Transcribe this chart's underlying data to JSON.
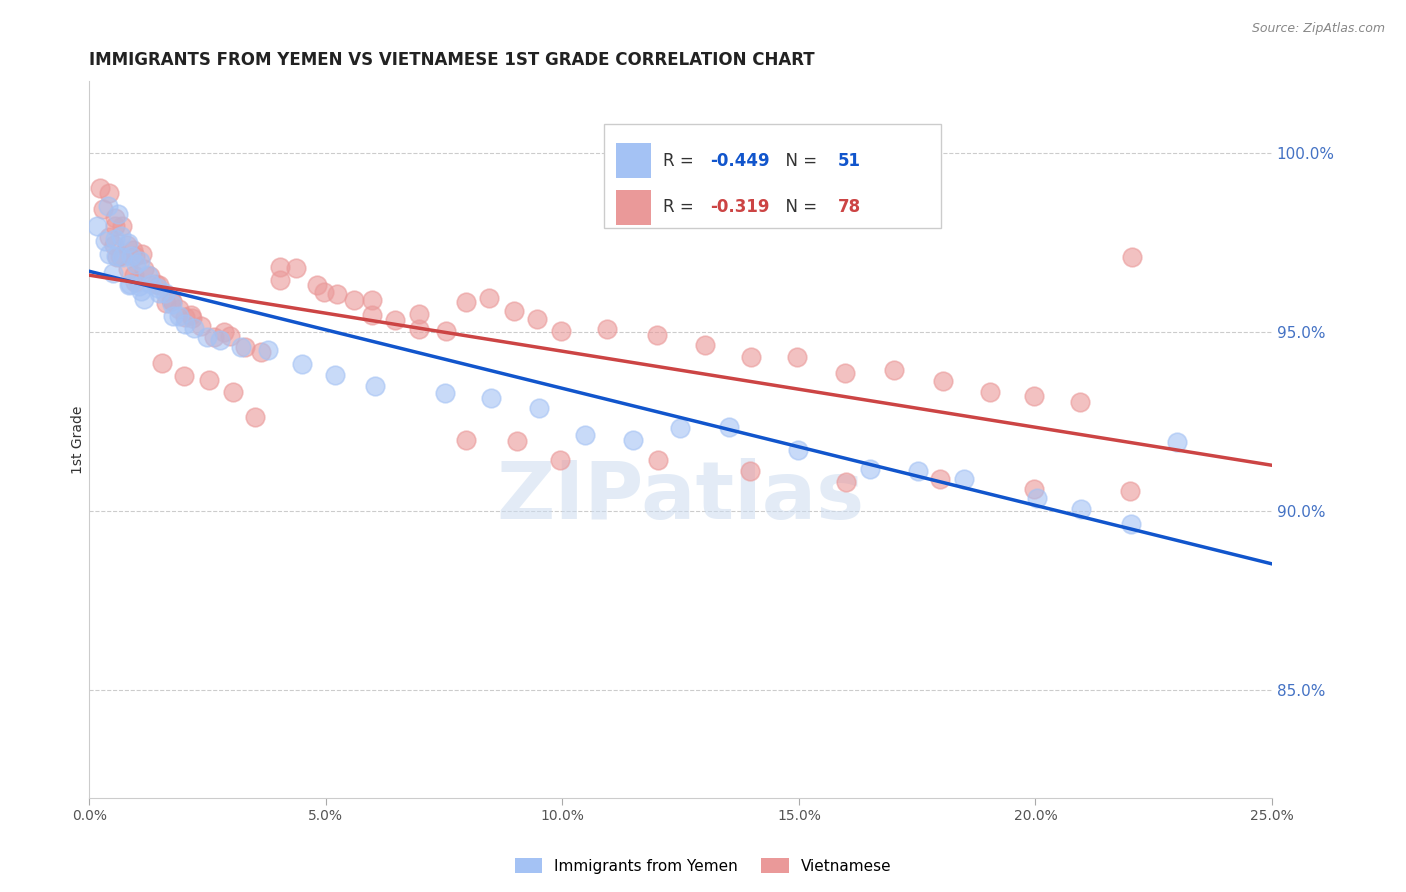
{
  "title": "IMMIGRANTS FROM YEMEN VS VIETNAMESE 1ST GRADE CORRELATION CHART",
  "source": "Source: ZipAtlas.com",
  "ylabel": "1st Grade",
  "ylabel_right_ticks": [
    "100.0%",
    "95.0%",
    "90.0%",
    "85.0%"
  ],
  "ylabel_right_vals": [
    1.0,
    0.95,
    0.9,
    0.85
  ],
  "xlim": [
    0.0,
    0.25
  ],
  "ylim": [
    0.82,
    1.02
  ],
  "legend_blue_r": "-0.449",
  "legend_blue_n": "51",
  "legend_pink_r": "-0.319",
  "legend_pink_n": "78",
  "legend_blue_label": "Immigrants from Yemen",
  "legend_pink_label": "Vietnamese",
  "blue_color": "#a4c2f4",
  "pink_color": "#ea9999",
  "blue_line_color": "#1155cc",
  "pink_line_color": "#cc4444",
  "watermark_text": "ZIPatlas",
  "blue_x": [
    0.002,
    0.003,
    0.004,
    0.004,
    0.005,
    0.005,
    0.006,
    0.006,
    0.007,
    0.007,
    0.008,
    0.008,
    0.009,
    0.009,
    0.01,
    0.01,
    0.011,
    0.011,
    0.012,
    0.012,
    0.013,
    0.014,
    0.015,
    0.016,
    0.017,
    0.018,
    0.019,
    0.02,
    0.022,
    0.025,
    0.028,
    0.032,
    0.038,
    0.045,
    0.052,
    0.06,
    0.075,
    0.085,
    0.095,
    0.105,
    0.115,
    0.125,
    0.135,
    0.15,
    0.165,
    0.175,
    0.185,
    0.2,
    0.21,
    0.22,
    0.23
  ],
  "blue_y": [
    0.98,
    0.975,
    0.985,
    0.972,
    0.978,
    0.968,
    0.982,
    0.971,
    0.976,
    0.969,
    0.974,
    0.965,
    0.972,
    0.963,
    0.97,
    0.961,
    0.968,
    0.96,
    0.966,
    0.958,
    0.965,
    0.963,
    0.961,
    0.96,
    0.958,
    0.956,
    0.955,
    0.953,
    0.952,
    0.95,
    0.948,
    0.946,
    0.944,
    0.94,
    0.938,
    0.935,
    0.932,
    0.93,
    0.928,
    0.92,
    0.918,
    0.925,
    0.922,
    0.918,
    0.912,
    0.91,
    0.908,
    0.905,
    0.9,
    0.898,
    0.92
  ],
  "pink_x": [
    0.002,
    0.003,
    0.004,
    0.004,
    0.005,
    0.005,
    0.006,
    0.006,
    0.007,
    0.007,
    0.008,
    0.008,
    0.009,
    0.009,
    0.01,
    0.01,
    0.011,
    0.012,
    0.013,
    0.014,
    0.015,
    0.016,
    0.017,
    0.018,
    0.019,
    0.02,
    0.021,
    0.022,
    0.024,
    0.026,
    0.028,
    0.03,
    0.033,
    0.036,
    0.04,
    0.044,
    0.048,
    0.052,
    0.056,
    0.06,
    0.065,
    0.07,
    0.075,
    0.08,
    0.085,
    0.09,
    0.095,
    0.1,
    0.11,
    0.12,
    0.13,
    0.14,
    0.15,
    0.16,
    0.17,
    0.18,
    0.19,
    0.2,
    0.21,
    0.22,
    0.015,
    0.02,
    0.025,
    0.03,
    0.035,
    0.04,
    0.05,
    0.06,
    0.07,
    0.08,
    0.09,
    0.1,
    0.12,
    0.14,
    0.16,
    0.18,
    0.2,
    0.22
  ],
  "pink_y": [
    0.99,
    0.985,
    0.988,
    0.978,
    0.983,
    0.975,
    0.98,
    0.972,
    0.978,
    0.97,
    0.976,
    0.968,
    0.974,
    0.966,
    0.972,
    0.964,
    0.97,
    0.968,
    0.965,
    0.963,
    0.962,
    0.96,
    0.958,
    0.957,
    0.956,
    0.955,
    0.954,
    0.953,
    0.951,
    0.95,
    0.948,
    0.947,
    0.946,
    0.944,
    0.97,
    0.966,
    0.962,
    0.96,
    0.958,
    0.956,
    0.954,
    0.952,
    0.95,
    0.96,
    0.958,
    0.956,
    0.954,
    0.952,
    0.95,
    0.948,
    0.946,
    0.944,
    0.942,
    0.94,
    0.938,
    0.936,
    0.934,
    0.932,
    0.93,
    0.972,
    0.94,
    0.938,
    0.935,
    0.932,
    0.928,
    0.964,
    0.962,
    0.958,
    0.955,
    0.92,
    0.918,
    0.916,
    0.914,
    0.912,
    0.91,
    0.908,
    0.906,
    0.904
  ]
}
